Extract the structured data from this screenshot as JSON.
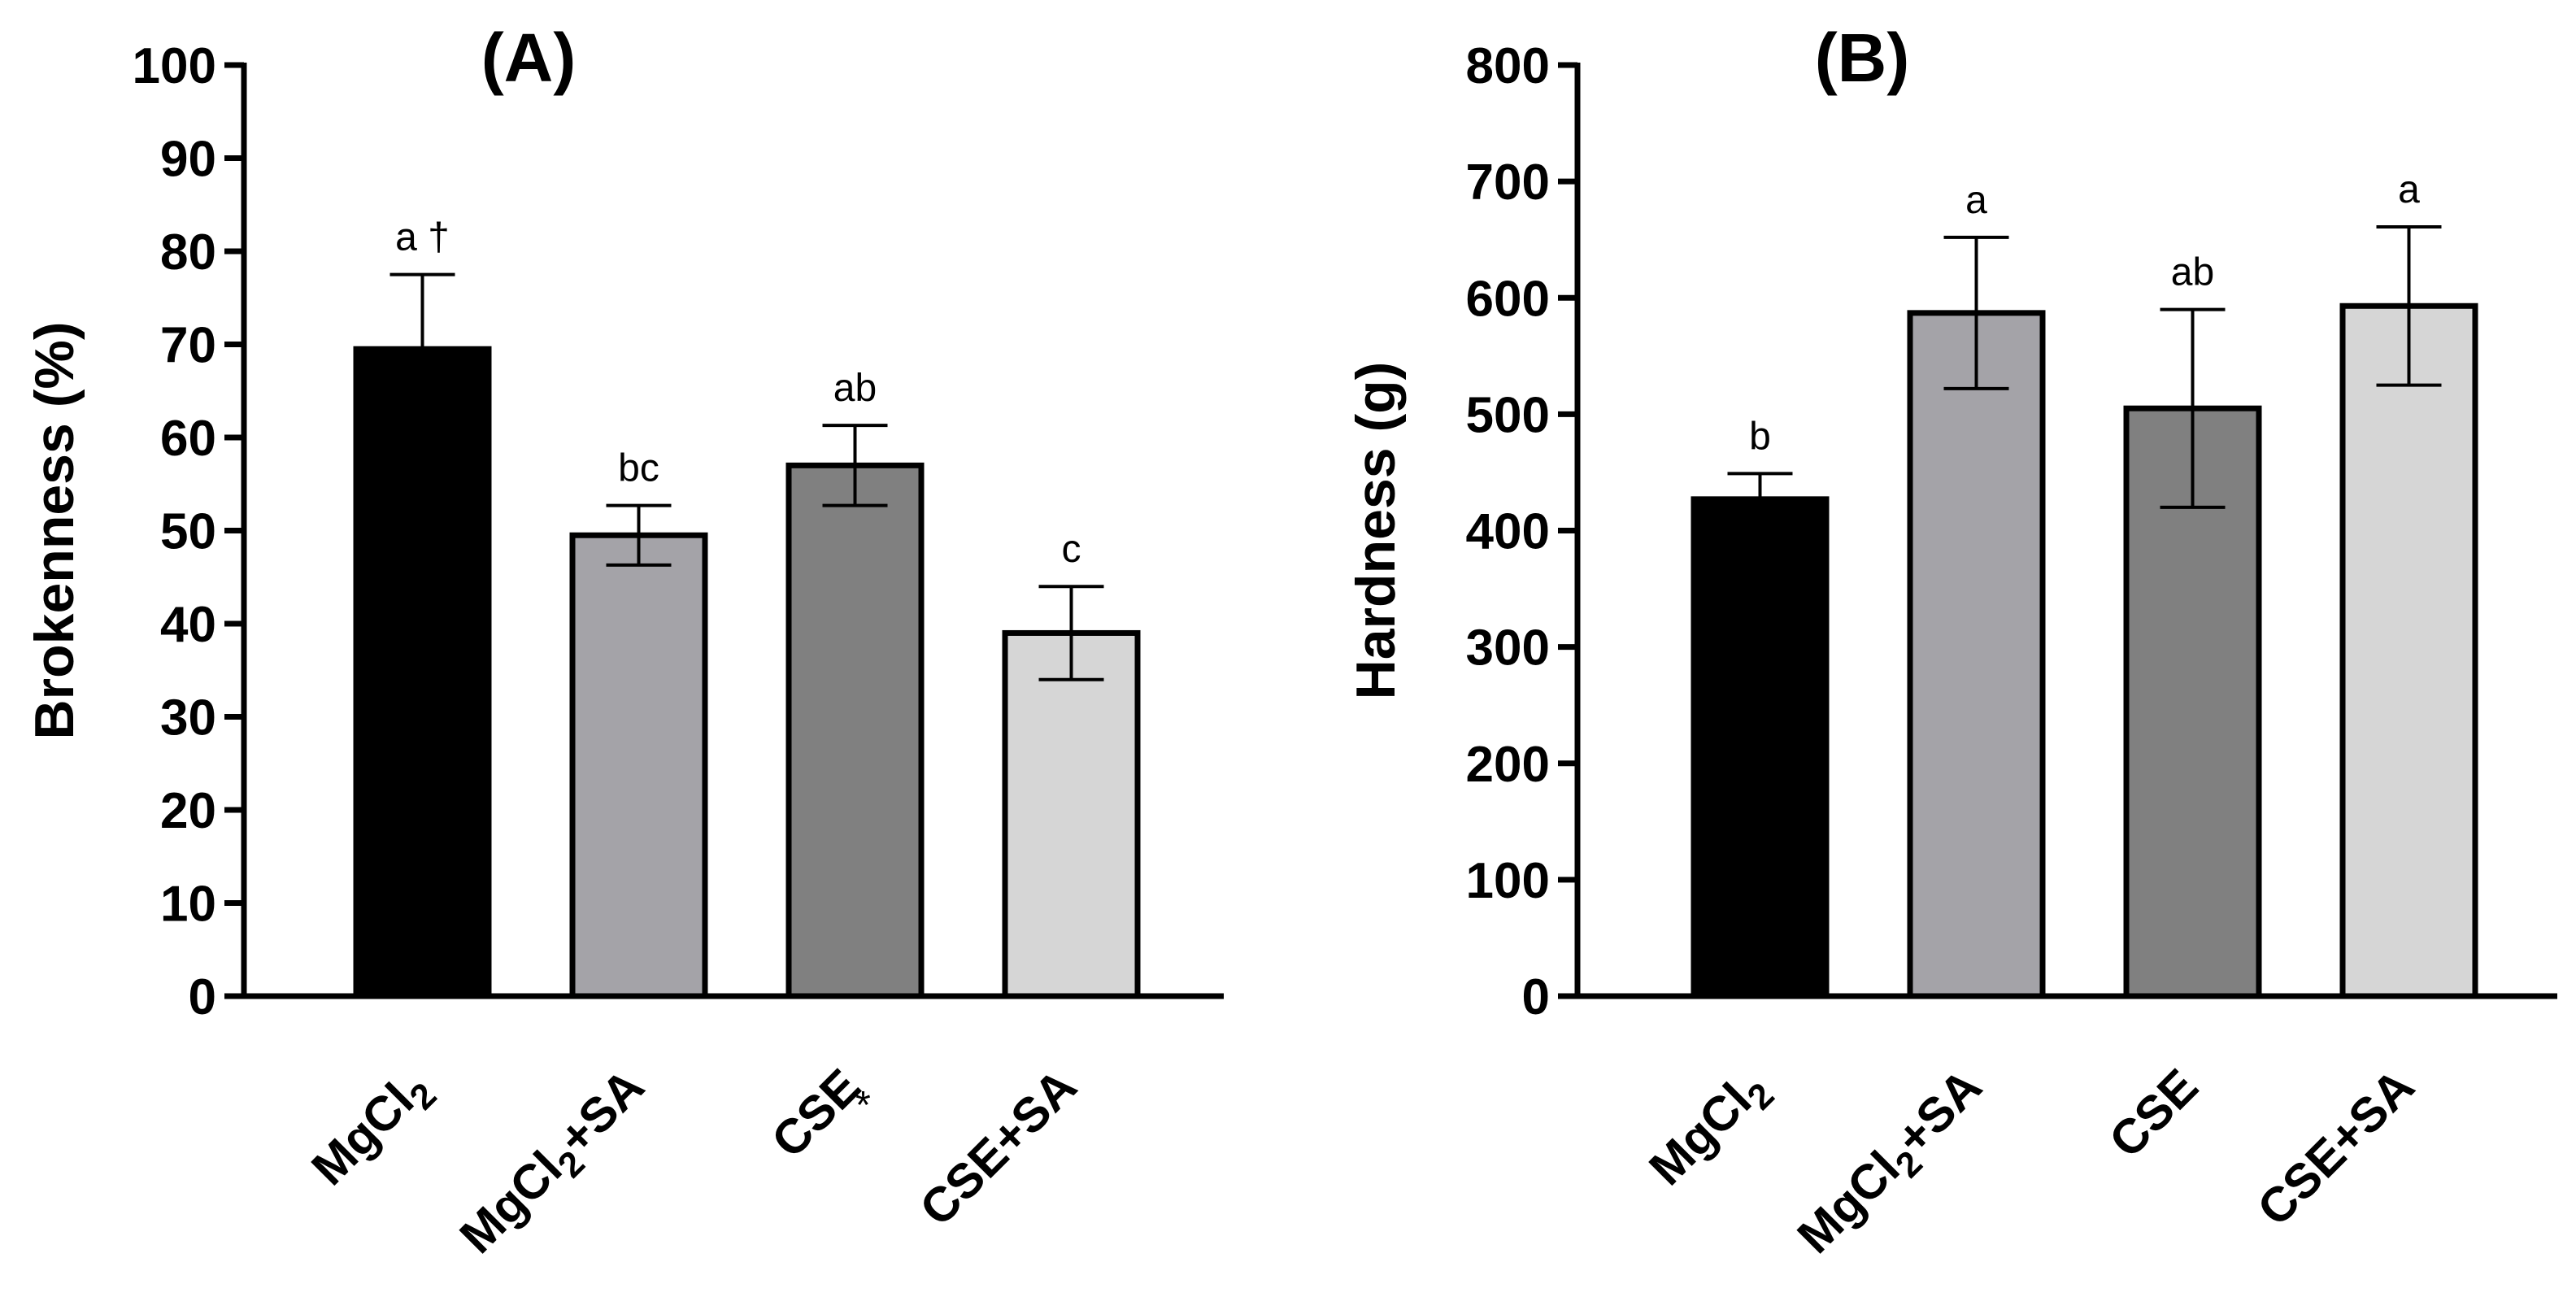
{
  "chart_data": [
    {
      "type": "bar",
      "panel_label": "(A)",
      "ylabel": "Brokenness (%)",
      "xlabel": "",
      "ylim": [
        0,
        100
      ],
      "yticks": [
        "0",
        "10",
        "20",
        "30",
        "40",
        "50",
        "60",
        "70",
        "80",
        "90",
        "100"
      ],
      "categories": [
        {
          "main": "MgCl",
          "sub": "2",
          "rest": "",
          "mark": ""
        },
        {
          "main": "MgCl",
          "sub": "2",
          "rest": "+SA",
          "mark": ""
        },
        {
          "main": "CSE",
          "sub": "",
          "rest": "",
          "mark": "*"
        },
        {
          "main": "CSE+SA",
          "sub": "",
          "rest": "",
          "mark": ""
        }
      ],
      "values": [
        69.5,
        49.5,
        57,
        39
      ],
      "errors": [
        8,
        3.2,
        4.3,
        5
      ],
      "labels": [
        "a †",
        "bc",
        "ab",
        "c"
      ],
      "colors": [
        "#000000",
        "#a4a3a8",
        "#808080",
        "#d6d6d6"
      ]
    },
    {
      "type": "bar",
      "panel_label": "(B)",
      "ylabel": "Hardness (g)",
      "xlabel": "",
      "ylim": [
        0,
        800
      ],
      "yticks": [
        "0",
        "100",
        "200",
        "300",
        "400",
        "500",
        "600",
        "700",
        "800"
      ],
      "categories": [
        {
          "main": "MgCl",
          "sub": "2",
          "rest": "",
          "mark": ""
        },
        {
          "main": "MgCl",
          "sub": "2",
          "rest": "+SA",
          "mark": ""
        },
        {
          "main": "CSE",
          "sub": "",
          "rest": "",
          "mark": ""
        },
        {
          "main": "CSE+SA",
          "sub": "",
          "rest": "",
          "mark": ""
        }
      ],
      "values": [
        427,
        587,
        505,
        593
      ],
      "errors": [
        22,
        65,
        85,
        68
      ],
      "labels": [
        "b",
        "a",
        "ab",
        "a"
      ],
      "colors": [
        "#000000",
        "#a4a3a8",
        "#808080",
        "#d6d6d6"
      ]
    }
  ]
}
